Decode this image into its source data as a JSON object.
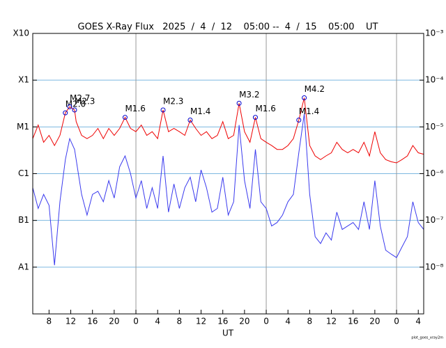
{
  "chart_data": {
    "type": "line",
    "title": "GOES X-Ray Flux   2025  /  4  /  12    05:00 --  4  /  15    05:00    UT",
    "xlabel": "UT",
    "footer": "plot_goes_xray2m",
    "ylog": true,
    "grid": true,
    "xlim": [
      0,
      72
    ],
    "xticks": [
      {
        "value": 3,
        "label": "8"
      },
      {
        "value": 7,
        "label": "12"
      },
      {
        "value": 11,
        "label": "16"
      },
      {
        "value": 15,
        "label": "20"
      },
      {
        "value": 19,
        "label": "0"
      },
      {
        "value": 23,
        "label": "4"
      },
      {
        "value": 27,
        "label": "8"
      },
      {
        "value": 31,
        "label": "12"
      },
      {
        "value": 35,
        "label": "16"
      },
      {
        "value": 39,
        "label": "20"
      },
      {
        "value": 43,
        "label": "0"
      },
      {
        "value": 47,
        "label": "4"
      },
      {
        "value": 51,
        "label": "8"
      },
      {
        "value": 55,
        "label": "12"
      },
      {
        "value": 59,
        "label": "16"
      },
      {
        "value": 63,
        "label": "20"
      },
      {
        "value": 67,
        "label": "0"
      },
      {
        "value": 71,
        "label": "4"
      }
    ],
    "day_lines": [
      19,
      43,
      67
    ],
    "ylim": [
      1e-09,
      0.001
    ],
    "yticks": [
      {
        "value": 0.001,
        "label": "X10"
      },
      {
        "value": 0.0001,
        "label": "X1"
      },
      {
        "value": 1e-05,
        "label": "M1"
      },
      {
        "value": 1e-06,
        "label": "C1"
      },
      {
        "value": 1e-07,
        "label": "B1"
      },
      {
        "value": 1e-08,
        "label": "A1"
      }
    ],
    "y2lim": [
      1e-09,
      0.001
    ],
    "y2ticks": [
      {
        "value": 0.001,
        "label": "10⁻³"
      },
      {
        "value": 0.0001,
        "label": "10⁻⁴"
      },
      {
        "value": 1e-05,
        "label": "10⁻⁵"
      },
      {
        "value": 1e-06,
        "label": "10⁻⁶"
      },
      {
        "value": 1e-07,
        "label": "10⁻⁷"
      },
      {
        "value": 1e-08,
        "label": "10⁻⁸"
      }
    ],
    "x": [
      0,
      1,
      2,
      3,
      4,
      5,
      6,
      6.8,
      7.7,
      8,
      9,
      10,
      11,
      12,
      13,
      14,
      15,
      16,
      17,
      18,
      19,
      20,
      21,
      22,
      23,
      24,
      25,
      26,
      27,
      28,
      29,
      30,
      31,
      32,
      33,
      34,
      35,
      36,
      37,
      38,
      39,
      40,
      41,
      42,
      43,
      44,
      45,
      46,
      47,
      48,
      49,
      50,
      51,
      52,
      53,
      54,
      55,
      56,
      57,
      58,
      59,
      60,
      61,
      62,
      63,
      64,
      65,
      66,
      67,
      68,
      69,
      70,
      71,
      72
    ],
    "series": [
      {
        "color": "#ee0000",
        "values": [
          5.6e-06,
          1.1e-05,
          4.7e-06,
          6.6e-06,
          4e-06,
          6.6e-06,
          2e-05,
          2.7e-05,
          2.3e-05,
          1.3e-05,
          6.6e-06,
          5.6e-06,
          6.6e-06,
          9.3e-06,
          5.6e-06,
          9.3e-06,
          6.6e-06,
          9.3e-06,
          1.6e-05,
          9.3e-06,
          7.9e-06,
          1.1e-05,
          6.6e-06,
          7.9e-06,
          5.6e-06,
          2.3e-05,
          7.9e-06,
          9.3e-06,
          7.9e-06,
          6.6e-06,
          1.4e-05,
          9.3e-06,
          6.6e-06,
          7.9e-06,
          5.6e-06,
          6.6e-06,
          1.3e-05,
          5.6e-06,
          6.6e-06,
          3.2e-05,
          7.9e-06,
          4.7e-06,
          1.6e-05,
          5.6e-06,
          4.7e-06,
          4e-06,
          3.3e-06,
          3.3e-06,
          4e-06,
          5.6e-06,
          1.4e-05,
          4.2e-05,
          4e-06,
          2.4e-06,
          2e-06,
          2.4e-06,
          2.8e-06,
          4.7e-06,
          3.3e-06,
          2.8e-06,
          3.3e-06,
          2.8e-06,
          4.7e-06,
          2.4e-06,
          7.9e-06,
          2.8e-06,
          2e-06,
          1.8e-06,
          1.7e-06,
          2e-06,
          2.4e-06,
          4e-06,
          2.8e-06,
          2.6e-06
        ]
      },
      {
        "color": "#3a3aee",
        "values": [
          5e-07,
          1.8e-07,
          3.6e-07,
          2.1e-07,
          1.1e-08,
          2.5e-07,
          2e-06,
          5.6e-06,
          3.3e-06,
          2e-06,
          3.6e-07,
          1.3e-07,
          3.6e-07,
          4.2e-07,
          2.5e-07,
          7.1e-07,
          3e-07,
          1.4e-06,
          2.4e-06,
          1e-06,
          3e-07,
          7.1e-07,
          1.8e-07,
          5e-07,
          1.8e-07,
          2.4e-06,
          1.5e-07,
          6e-07,
          1.8e-07,
          5e-07,
          8.4e-07,
          2.5e-07,
          1.2e-06,
          5e-07,
          1.5e-07,
          1.8e-07,
          8.4e-07,
          1.3e-07,
          2.5e-07,
          1.1e-05,
          7.1e-07,
          1.8e-07,
          3.3e-06,
          2.5e-07,
          1.8e-07,
          7.6e-08,
          9e-08,
          1.3e-07,
          2.5e-07,
          3.6e-07,
          2.8e-06,
          1.9e-05,
          3.6e-07,
          4.5e-08,
          3.2e-08,
          5.4e-08,
          3.8e-08,
          1.5e-07,
          6.4e-08,
          7.6e-08,
          9e-08,
          6.4e-08,
          2.5e-07,
          6.4e-08,
          7.1e-07,
          7.6e-08,
          2.3e-08,
          1.9e-08,
          1.6e-08,
          2.7e-08,
          4.5e-08,
          2.5e-07,
          9e-08,
          6.4e-08
        ]
      }
    ],
    "annotations": [
      {
        "text": "M2.0",
        "x": 6,
        "y": 2e-05
      },
      {
        "text": "M2.7",
        "x": 6.8,
        "y": 2.7e-05
      },
      {
        "text": "M2.3",
        "x": 7.7,
        "y": 2.3e-05
      },
      {
        "text": "M1.6",
        "x": 17,
        "y": 1.6e-05
      },
      {
        "text": "M2.3",
        "x": 24,
        "y": 2.3e-05
      },
      {
        "text": "M1.4",
        "x": 29,
        "y": 1.4e-05
      },
      {
        "text": "M3.2",
        "x": 38,
        "y": 3.2e-05
      },
      {
        "text": "M1.6",
        "x": 41,
        "y": 1.6e-05
      },
      {
        "text": "M1.4",
        "x": 49,
        "y": 1.4e-05
      },
      {
        "text": "M4.2",
        "x": 50,
        "y": 4.2e-05
      }
    ]
  }
}
